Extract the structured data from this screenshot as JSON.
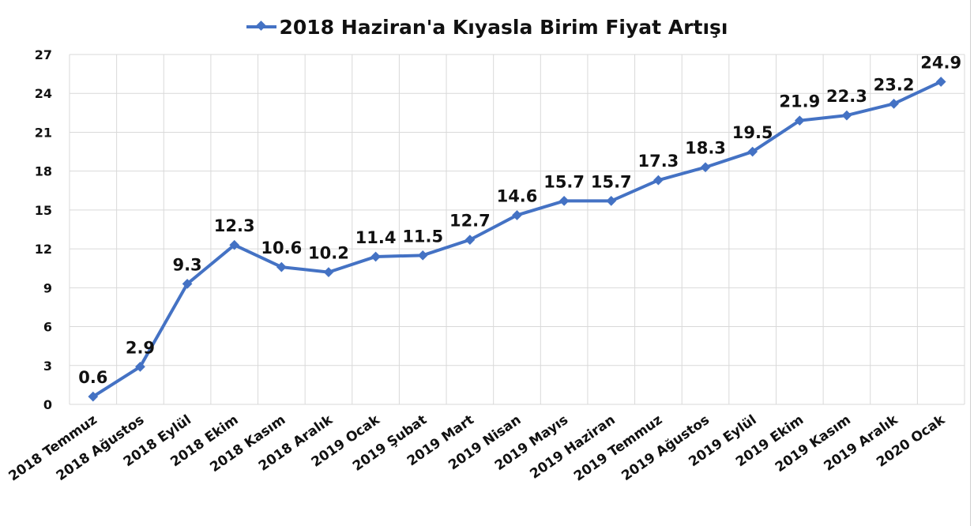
{
  "colors": {
    "series": "#4472C4",
    "grid": "#D9D9D9",
    "text": "#111111"
  },
  "chart_data": {
    "type": "line",
    "title": "",
    "xlabel": "",
    "ylabel": "",
    "ylim": [
      0,
      27
    ],
    "yticks": [
      0,
      3,
      6,
      9,
      12,
      15,
      18,
      21,
      24,
      27
    ],
    "grid": true,
    "legend_position": "top-center",
    "categories": [
      "2018 Temmuz",
      "2018 Ağustos",
      "2018 Eylül",
      "2018 Ekim",
      "2018 Kasım",
      "2018 Aralık",
      "2019 Ocak",
      "2019 Şubat",
      "2019 Mart",
      "2019 Nisan",
      "2019 Mayıs",
      "2019 Haziran",
      "2019 Temmuz",
      "2019 Ağustos",
      "2019 Eylül",
      "2019 Ekim",
      "2019 Kasım",
      "2019 Aralık",
      "2020 Ocak"
    ],
    "series": [
      {
        "name": "2018 Haziran'a Kıyasla Birim Fiyat Artışı",
        "values": [
          0.6,
          2.9,
          9.3,
          12.3,
          10.6,
          10.2,
          11.4,
          11.5,
          12.7,
          14.6,
          15.7,
          15.7,
          17.3,
          18.3,
          19.5,
          21.9,
          22.3,
          23.2,
          24.9
        ]
      }
    ]
  }
}
